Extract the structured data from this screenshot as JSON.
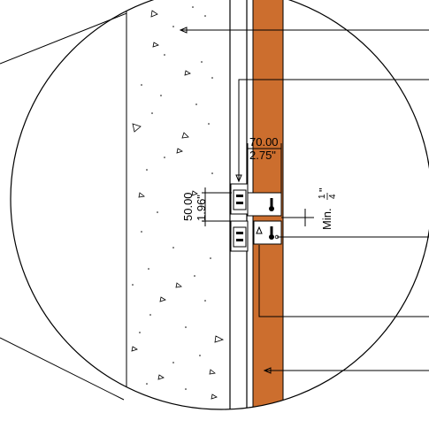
{
  "diagram": {
    "dimensions": {
      "width_mm": "70.00",
      "width_in": "2.75\"",
      "height_mm": "50.00",
      "height_in": "1.96\"",
      "gap_prefix": "Min. ",
      "gap_frac_num": "1",
      "gap_frac_den": "4",
      "gap_unit": "\""
    },
    "colors": {
      "cladding": "#CC6E2E",
      "concrete": "#FFFFFF",
      "line": "#000000"
    },
    "icons": [
      "wall-bracket-icon",
      "fastener-icon"
    ]
  }
}
